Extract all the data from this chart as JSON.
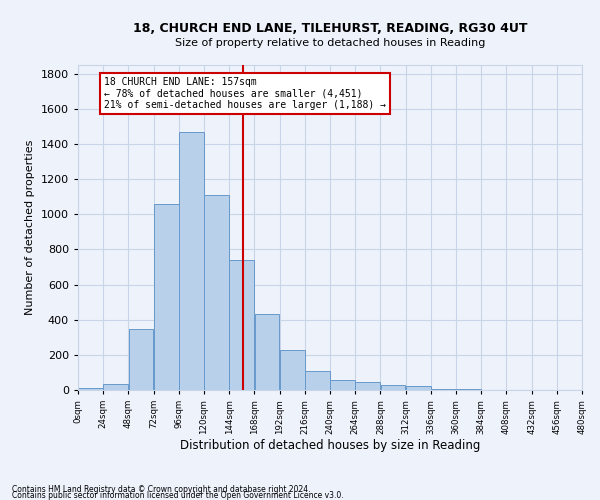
{
  "title1": "18, CHURCH END LANE, TILEHURST, READING, RG30 4UT",
  "title2": "Size of property relative to detached houses in Reading",
  "xlabel": "Distribution of detached houses by size in Reading",
  "ylabel": "Number of detached properties",
  "bin_edges": [
    0,
    24,
    48,
    72,
    96,
    120,
    144,
    168,
    192,
    216,
    240,
    264,
    288,
    312,
    336,
    360,
    384,
    408,
    432,
    456,
    480
  ],
  "bar_heights": [
    10,
    35,
    350,
    1060,
    1470,
    1110,
    740,
    430,
    225,
    110,
    55,
    45,
    30,
    20,
    5,
    5,
    0,
    0,
    0,
    0
  ],
  "bar_color": "#b8d0ea",
  "bar_edgecolor": "#6699cc",
  "property_size": 157,
  "vline_color": "#cc0000",
  "annotation_text": "18 CHURCH END LANE: 157sqm\n← 78% of detached houses are smaller (4,451)\n21% of semi-detached houses are larger (1,188) →",
  "annotation_box_color": "#ffffff",
  "annotation_box_edgecolor": "#cc0000",
  "ylim": [
    0,
    1850
  ],
  "yticks": [
    0,
    200,
    400,
    600,
    800,
    1000,
    1200,
    1400,
    1600,
    1800
  ],
  "footnote1": "Contains HM Land Registry data © Crown copyright and database right 2024.",
  "footnote2": "Contains public sector information licensed under the Open Government Licence v3.0.",
  "background_color": "#eef2fb",
  "grid_color": "#c8d4e8"
}
